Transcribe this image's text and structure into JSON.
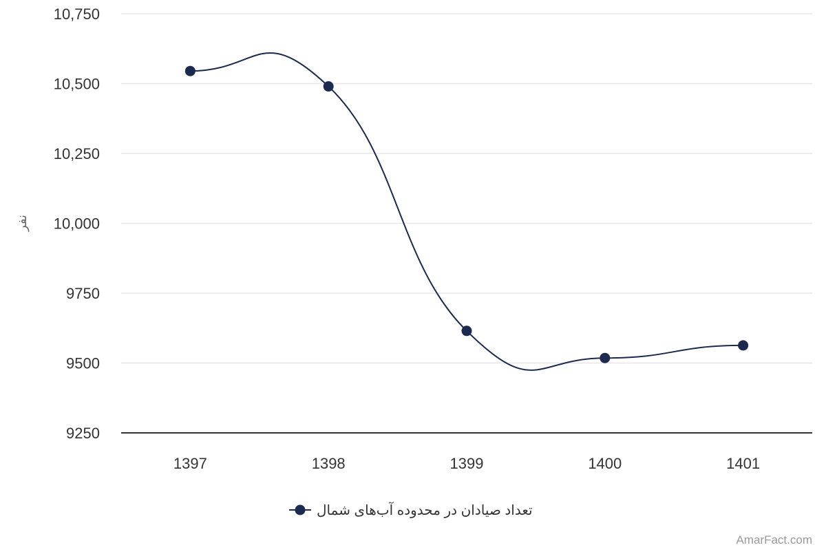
{
  "chart_data": {
    "type": "line",
    "smooth": true,
    "title": "",
    "xlabel": "",
    "ylabel": "نفر",
    "categories": [
      "1397",
      "1398",
      "1399",
      "1400",
      "1401"
    ],
    "series": [
      {
        "name": "تعداد صیادان در محدوده آب‌های شمال",
        "values": [
          10545,
          10490,
          9615,
          9518,
          9563
        ],
        "color": "#1b2a4e"
      }
    ],
    "ylim": [
      9250,
      10750
    ],
    "yticks": [
      9250,
      9500,
      9750,
      10000,
      10250,
      10500,
      10750
    ],
    "ytick_labels": [
      "9250",
      "9500",
      "9750",
      "10,000",
      "10,250",
      "10,500",
      "10,750"
    ],
    "grid": true,
    "legend_position": "bottom-center",
    "gridline_color": "#e6e6e6",
    "axis_line_color": "#333333"
  },
  "credit": {
    "text": "AmarFact.com"
  }
}
